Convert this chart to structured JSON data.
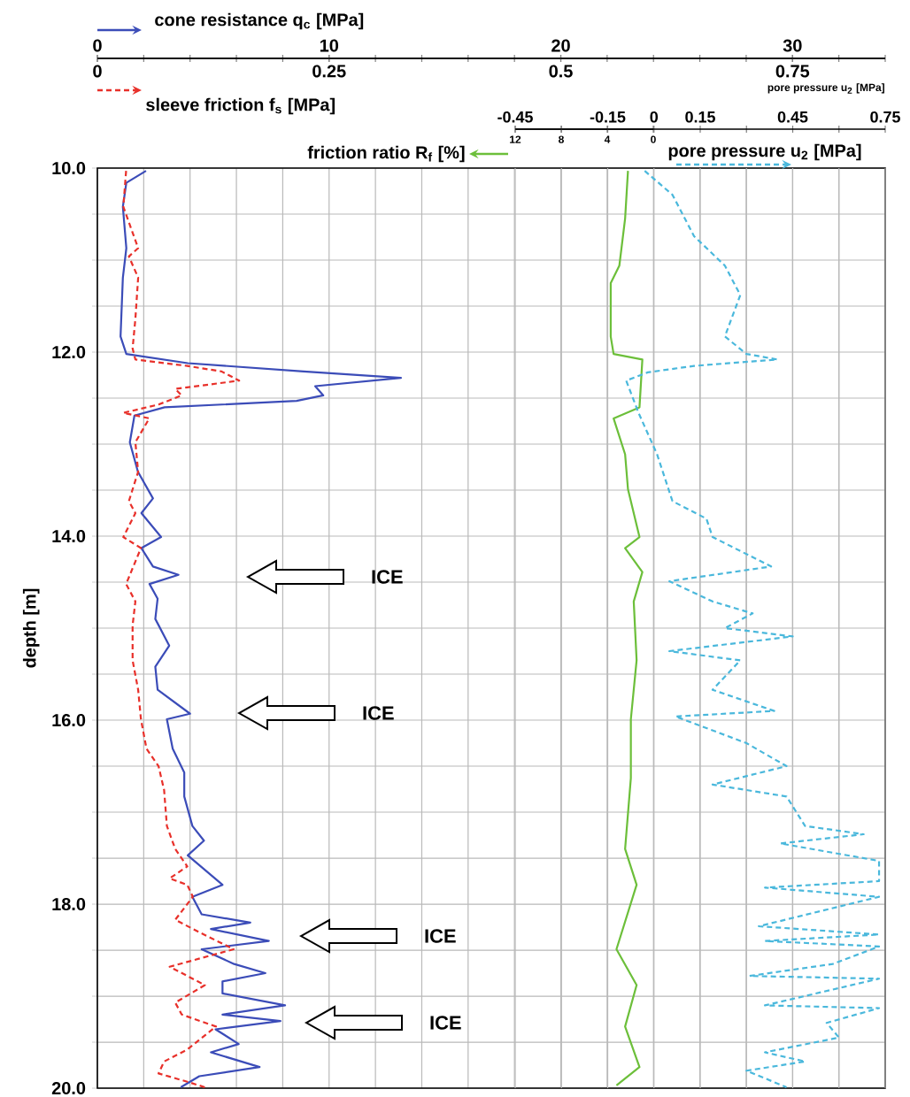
{
  "chart_data": [
    {
      "type": "line",
      "xlabel": "cone resistance q$_{c}$ [MPa]",
      "x2label": "sleeve friction f$_{s}$ [MPa]",
      "ylabel": "depth [m]",
      "xlim": [
        0,
        34
      ],
      "xticks": [
        0,
        {
          "value": 2,
          "label": null
        },
        {
          "value": 4,
          "label": null
        },
        {
          "value": 6,
          "label": null
        },
        {
          "value": 8,
          "label": null
        },
        10,
        {
          "value": 12,
          "label": null
        },
        {
          "value": 14,
          "label": null
        },
        {
          "value": 16,
          "label": null
        },
        {
          "value": 18,
          "label": null
        },
        20,
        {
          "value": 22,
          "label": null
        },
        {
          "value": 24,
          "label": null
        },
        {
          "value": 26,
          "label": null
        },
        {
          "value": 28,
          "label": null
        },
        30,
        {
          "value": 32,
          "label": null
        },
        {
          "value": 34,
          "label": null
        }
      ],
      "x2lim": [
        0,
        0.85
      ],
      "x2ticks": [
        0,
        0.25,
        0.5,
        0.75
      ],
      "ylim": [
        20,
        10
      ],
      "yticks": [
        {
          "value": 10,
          "label": "10.0"
        },
        {
          "value": 10.5,
          "label": null
        },
        {
          "value": 11,
          "label": null
        },
        {
          "value": 11.5,
          "label": null
        },
        {
          "value": 12,
          "label": "12.0"
        },
        {
          "value": 12.5,
          "label": null
        },
        {
          "value": 13,
          "label": null
        },
        {
          "value": 13.5,
          "label": null
        },
        {
          "value": 14,
          "label": "14.0"
        },
        {
          "value": 14.5,
          "label": null
        },
        {
          "value": 15,
          "label": null
        },
        {
          "value": 15.5,
          "label": null
        },
        {
          "value": 16,
          "label": "16.0"
        },
        {
          "value": 16.5,
          "label": null
        },
        {
          "value": 17,
          "label": null
        },
        {
          "value": 17.5,
          "label": null
        },
        {
          "value": 18,
          "label": "18.0"
        },
        {
          "value": 18.5,
          "label": null
        },
        {
          "value": 19,
          "label": null
        },
        {
          "value": 19.5,
          "label": null
        },
        {
          "value": 20,
          "label": "20.0"
        }
      ],
      "grid": true,
      "series": [
        {
          "color": "#3b4cb8",
          "line_style": "solid",
          "x": [
            2.1,
            1.25,
            1.1,
            1.25,
            1.1,
            1.0,
            1.25,
            3.9,
            8.9,
            13.1,
            9.4,
            9.75,
            8.6,
            2.9,
            1.6,
            1.4,
            1.75,
            2.4,
            1.9,
            2.75,
            1.9,
            2.4,
            3.5,
            2.25,
            2.6,
            2.5,
            3.1,
            2.5,
            2.6,
            4.0,
            3.0,
            3.25,
            3.75,
            3.75,
            4.1,
            4.6,
            3.9,
            5.4,
            4.1,
            4.5,
            6.6,
            4.9,
            7.4,
            4.5,
            5.9,
            7.25,
            5.4,
            5.4,
            8.1,
            5.4,
            7.9,
            5.1,
            6.1,
            4.9,
            7.0,
            4.4,
            3.6
          ],
          "values": [
            10.03,
            10.16,
            10.42,
            10.87,
            11.19,
            11.83,
            12.02,
            12.12,
            12.21,
            12.28,
            12.37,
            12.47,
            12.53,
            12.6,
            12.69,
            12.98,
            13.3,
            13.59,
            13.75,
            14.01,
            14.13,
            14.33,
            14.42,
            14.52,
            14.68,
            14.9,
            15.19,
            15.42,
            15.67,
            15.93,
            15.99,
            16.31,
            16.57,
            16.83,
            17.15,
            17.31,
            17.47,
            17.79,
            17.92,
            18.11,
            18.2,
            18.27,
            18.4,
            18.49,
            18.65,
            18.75,
            18.84,
            18.97,
            19.1,
            19.2,
            19.27,
            19.36,
            19.52,
            19.61,
            19.77,
            19.87,
            19.99
          ]
        },
        {
          "axis": "x2",
          "color": "#e8302a",
          "line_style": "dashed",
          "x": [
            0.031,
            0.028,
            0.044,
            0.034,
            0.044,
            0.041,
            0.038,
            0.041,
            0.097,
            0.134,
            0.153,
            0.084,
            0.091,
            0.066,
            0.028,
            0.056,
            0.041,
            0.044,
            0.034,
            0.041,
            0.028,
            0.047,
            0.031,
            0.041,
            0.038,
            0.038,
            0.044,
            0.047,
            0.053,
            0.066,
            0.072,
            0.075,
            0.084,
            0.097,
            0.078,
            0.097,
            0.103,
            0.084,
            0.109,
            0.147,
            0.078,
            0.116,
            0.084,
            0.091,
            0.128,
            0.097,
            0.072,
            0.066,
            0.097,
            0.116
          ],
          "values": [
            10.03,
            10.42,
            10.87,
            10.96,
            11.19,
            11.64,
            11.96,
            12.08,
            12.15,
            12.21,
            12.31,
            12.4,
            12.47,
            12.57,
            12.66,
            12.72,
            12.98,
            13.3,
            13.62,
            13.75,
            14.01,
            14.13,
            14.52,
            14.71,
            14.97,
            15.35,
            15.67,
            15.99,
            16.31,
            16.5,
            16.76,
            17.15,
            17.4,
            17.59,
            17.72,
            17.79,
            17.92,
            18.17,
            18.3,
            18.49,
            18.68,
            18.88,
            19.07,
            19.2,
            19.33,
            19.58,
            19.71,
            19.84,
            19.93,
            19.99
          ]
        }
      ],
      "annotations": [
        "ICE",
        "ICE",
        "ICE",
        "ICE"
      ]
    },
    {
      "type": "line",
      "xlabel": "friction ratio R$_{f}$ [%]",
      "xlim": [
        12,
        0
      ],
      "xticks": [
        12,
        8,
        4,
        0
      ],
      "ylim": [
        20,
        10
      ],
      "tick_labels": "x",
      "series": [
        {
          "color": "#6cbf3a",
          "line_style": "solid",
          "x": [
            2.2,
            2.45,
            2.95,
            3.7,
            3.7,
            3.45,
            0.95,
            1.2,
            3.45,
            2.45,
            2.2,
            1.2,
            2.45,
            0.95,
            1.7,
            1.45,
            1.95,
            1.95,
            2.45,
            1.45,
            3.2,
            1.45,
            2.45,
            1.2,
            3.2
          ],
          "values": [
            10.03,
            10.55,
            11.06,
            11.25,
            11.83,
            12.02,
            12.08,
            12.6,
            12.72,
            13.11,
            13.49,
            14.01,
            14.13,
            14.39,
            14.71,
            15.35,
            15.99,
            16.63,
            17.4,
            17.79,
            18.49,
            18.88,
            19.33,
            19.77,
            19.97
          ]
        }
      ]
    },
    {
      "type": "line",
      "xlabel": "pore pressure u$_{2}$ [MPa]",
      "xlim": [
        -0.45,
        0.75
      ],
      "xticks": [
        -0.45,
        {
          "value": -0.3,
          "label": null
        },
        -0.15,
        0,
        0.15,
        {
          "value": 0.3,
          "label": null
        },
        0.45,
        {
          "value": 0.6,
          "label": null
        },
        0.75
      ],
      "ylim": [
        20,
        10
      ],
      "grid": "x",
      "tick_labels": "x",
      "series": [
        {
          "color": "#4ab8dc",
          "line_style": "dashed",
          "x": [
            -0.03,
            0.06,
            0.13,
            0.23,
            0.28,
            0.23,
            0.3,
            0.4,
            0.13,
            -0.02,
            -0.09,
            -0.05,
            0.01,
            0.06,
            0.17,
            0.19,
            0.38,
            0.05,
            0.19,
            0.32,
            0.23,
            0.45,
            0.05,
            0.28,
            0.19,
            0.39,
            0.07,
            0.3,
            0.43,
            0.19,
            0.43,
            0.49,
            0.68,
            0.41,
            0.73,
            0.73,
            0.36,
            0.73,
            0.34,
            0.73,
            0.36,
            0.73,
            0.58,
            0.31,
            0.73,
            0.36,
            0.73,
            0.56,
            0.6,
            0.36,
            0.49,
            0.3,
            0.43
          ],
          "values": [
            10.03,
            10.29,
            10.74,
            11.06,
            11.38,
            11.83,
            12.02,
            12.08,
            12.15,
            12.22,
            12.31,
            12.66,
            13.11,
            13.62,
            13.81,
            14.01,
            14.33,
            14.49,
            14.71,
            14.84,
            15.0,
            15.09,
            15.25,
            15.35,
            15.67,
            15.9,
            15.96,
            16.25,
            16.5,
            16.7,
            16.83,
            17.15,
            17.24,
            17.34,
            17.53,
            17.75,
            17.82,
            17.92,
            18.24,
            18.33,
            18.4,
            18.46,
            18.65,
            18.78,
            18.81,
            19.1,
            19.13,
            19.29,
            19.45,
            19.61,
            19.71,
            19.81,
            19.99
          ]
        }
      ],
      "annotations": [
        "pore pressure u$_{2}$ [MPa]"
      ]
    }
  ]
}
